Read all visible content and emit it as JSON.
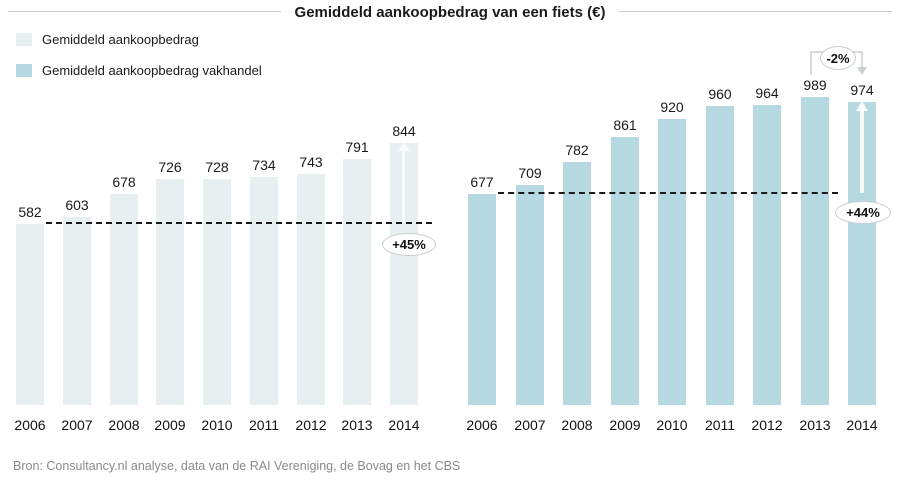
{
  "header": {
    "title": "Gemiddeld aankoopbedrag van een fiets (€)"
  },
  "legend": {
    "items": [
      {
        "label": "Gemiddeld aankoopbedrag",
        "color": "#e8eff1"
      },
      {
        "label": "Gemiddeld aankoopbedrag vakhandel",
        "color": "#b5d8e1"
      }
    ]
  },
  "chart_data": {
    "type": "bar",
    "title": "Gemiddeld aankoopbedrag van een fiets (€)",
    "xlabel": "",
    "ylabel": "",
    "ylim": [
      0,
      1000
    ],
    "grid": false,
    "legend_position": "top-left",
    "categories": [
      "2006",
      "2007",
      "2008",
      "2009",
      "2010",
      "2011",
      "2012",
      "2013",
      "2014"
    ],
    "series": [
      {
        "name": "Gemiddeld aankoopbedrag",
        "color": "#e8eff1",
        "values": [
          582,
          603,
          678,
          726,
          728,
          734,
          743,
          791,
          844
        ],
        "reference_line_value": 582,
        "change_label": "+45%"
      },
      {
        "name": "Gemiddeld aankoopbedrag vakhandel",
        "color": "#b5d8e1",
        "values": [
          677,
          709,
          782,
          861,
          920,
          960,
          964,
          989,
          974
        ],
        "reference_line_value": 677,
        "change_label": "+44%",
        "peak_change_label": "-2%"
      }
    ]
  },
  "footer": {
    "source": "Bron: Consultancy.nl analyse, data van de RAI Vereniging, de Bovag en het CBS"
  },
  "colors": {
    "bar_light": "#e8eff1",
    "bar_blue": "#b5d8e1",
    "dash": "#1a1a1a",
    "annotation_border": "#c9ced1",
    "annotation_line": "#c9ced1",
    "title_rule": "#c9c9c9",
    "source_text": "#8a8a8a"
  }
}
